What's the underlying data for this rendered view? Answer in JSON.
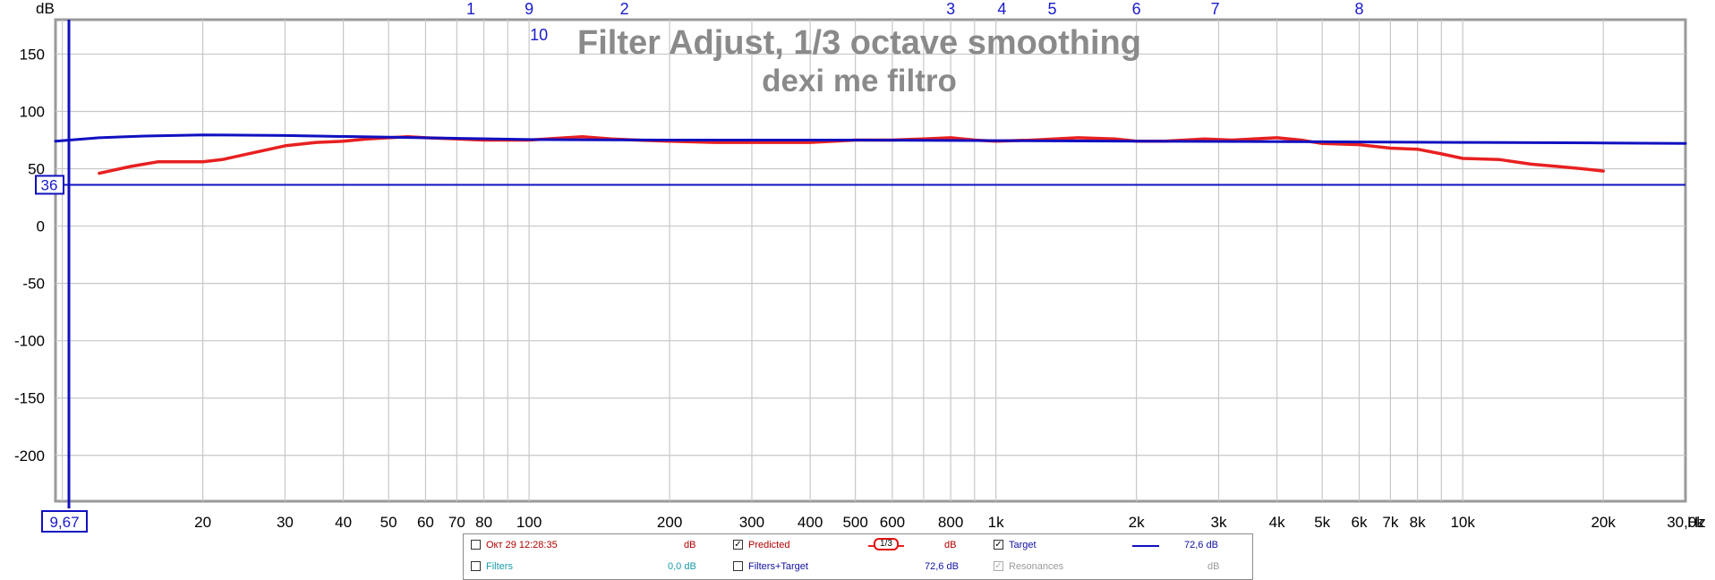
{
  "colors": {
    "measurement": "#e82020",
    "target": "#1010c0",
    "grid": "#c8c8c8",
    "filter_index": "#1a1acc",
    "title": "#8a8a8a",
    "frame": "#9a9a9a",
    "cursor": "#1010c0"
  },
  "chart_data": {
    "type": "line",
    "title": "Filter Adjust, 1/3 octave smoothing",
    "subtitle": "dexi me filtro",
    "ylabel": "dB",
    "xlabel": "Hz",
    "x_scale": "log",
    "xlim": [
      9.67,
      30000
    ],
    "ylim": [
      -240,
      180
    ],
    "grid": true,
    "y_ticks": [
      "150",
      "100",
      "50",
      "0",
      "-50",
      "-100",
      "-150",
      "-200"
    ],
    "x_ticks": [
      {
        "f": 20,
        "label": "20"
      },
      {
        "f": 30,
        "label": "30"
      },
      {
        "f": 40,
        "label": "40"
      },
      {
        "f": 50,
        "label": "50"
      },
      {
        "f": 60,
        "label": "60"
      },
      {
        "f": 70,
        "label": "70"
      },
      {
        "f": 80,
        "label": "80"
      },
      {
        "f": 100,
        "label": "100"
      },
      {
        "f": 200,
        "label": "200"
      },
      {
        "f": 300,
        "label": "300"
      },
      {
        "f": 400,
        "label": "400"
      },
      {
        "f": 500,
        "label": "500"
      },
      {
        "f": 600,
        "label": "600"
      },
      {
        "f": 800,
        "label": "800"
      },
      {
        "f": 1000,
        "label": "1k"
      },
      {
        "f": 2000,
        "label": "2k"
      },
      {
        "f": 3000,
        "label": "3k"
      },
      {
        "f": 4000,
        "label": "4k"
      },
      {
        "f": 5000,
        "label": "5k"
      },
      {
        "f": 6000,
        "label": "6k"
      },
      {
        "f": 7000,
        "label": "7k"
      },
      {
        "f": 8000,
        "label": "8k"
      },
      {
        "f": 10000,
        "label": "10k"
      },
      {
        "f": 20000,
        "label": "20k"
      },
      {
        "f": 30000,
        "label": "30,0k"
      }
    ],
    "x_cursor_label": "9,67",
    "y_cursor": {
      "value": 36,
      "label": "36"
    },
    "filter_markers": [
      {
        "label": "1",
        "f": 75
      },
      {
        "label": "9",
        "f": 100
      },
      {
        "label": "10",
        "f": 105
      },
      {
        "label": "2",
        "f": 160
      },
      {
        "label": "3",
        "f": 800
      },
      {
        "label": "4",
        "f": 1030
      },
      {
        "label": "5",
        "f": 1320
      },
      {
        "label": "6",
        "f": 2000
      },
      {
        "label": "7",
        "f": 2950
      },
      {
        "label": "8",
        "f": 6000
      }
    ],
    "series": [
      {
        "name": "Predicted",
        "color": "#e82020",
        "points": [
          [
            12,
            46
          ],
          [
            14,
            52
          ],
          [
            16,
            56
          ],
          [
            18,
            56
          ],
          [
            20,
            56
          ],
          [
            22,
            58
          ],
          [
            25,
            63
          ],
          [
            30,
            70
          ],
          [
            35,
            73
          ],
          [
            40,
            74
          ],
          [
            45,
            76
          ],
          [
            50,
            77
          ],
          [
            55,
            78
          ],
          [
            60,
            77
          ],
          [
            70,
            76
          ],
          [
            80,
            75
          ],
          [
            100,
            75
          ],
          [
            120,
            77
          ],
          [
            130,
            78
          ],
          [
            150,
            76
          ],
          [
            170,
            75
          ],
          [
            200,
            74
          ],
          [
            250,
            73
          ],
          [
            300,
            73
          ],
          [
            400,
            73
          ],
          [
            500,
            75
          ],
          [
            600,
            75
          ],
          [
            700,
            76
          ],
          [
            800,
            77
          ],
          [
            900,
            75
          ],
          [
            1000,
            74
          ],
          [
            1200,
            75
          ],
          [
            1500,
            77
          ],
          [
            1800,
            76
          ],
          [
            2000,
            74
          ],
          [
            2300,
            74
          ],
          [
            2800,
            76
          ],
          [
            3200,
            75
          ],
          [
            4000,
            77
          ],
          [
            4500,
            75
          ],
          [
            5000,
            72
          ],
          [
            6000,
            71
          ],
          [
            7000,
            68
          ],
          [
            8000,
            67
          ],
          [
            9000,
            63
          ],
          [
            10000,
            59
          ],
          [
            12000,
            58
          ],
          [
            14000,
            54
          ],
          [
            16000,
            52
          ],
          [
            18000,
            50
          ],
          [
            20000,
            48
          ]
        ]
      },
      {
        "name": "Target",
        "color": "#1010c0",
        "points": [
          [
            9.67,
            74
          ],
          [
            12,
            77
          ],
          [
            15,
            78.5
          ],
          [
            20,
            79.5
          ],
          [
            30,
            79
          ],
          [
            50,
            77.5
          ],
          [
            100,
            75.5
          ],
          [
            200,
            75
          ],
          [
            500,
            75
          ],
          [
            1000,
            74.5
          ],
          [
            2000,
            74
          ],
          [
            5000,
            73.5
          ],
          [
            10000,
            73
          ],
          [
            20000,
            72.5
          ],
          [
            30000,
            72
          ]
        ]
      }
    ]
  },
  "legend": {
    "row1": [
      {
        "checked": false,
        "label": "Окт 29 12:28:35",
        "value": "dB",
        "color": "#b00000"
      },
      {
        "checked": true,
        "label": "Predicted",
        "smoothing": "1/3",
        "value": "dB",
        "color": "#b00000"
      },
      {
        "checked": true,
        "label": "Target",
        "value": "72,6 dB",
        "color": "#1010a0"
      }
    ],
    "row2": [
      {
        "checked": false,
        "label": "Filters",
        "value": "0,0 dB",
        "color": "#1a9aa8"
      },
      {
        "checked": false,
        "label": "Filters+Target",
        "value": "72,6 dB",
        "color": "#1010a0"
      },
      {
        "checked": true,
        "label": "Resonances",
        "value": "dB",
        "color": "#9a9a9a",
        "disabled": true
      }
    ]
  }
}
